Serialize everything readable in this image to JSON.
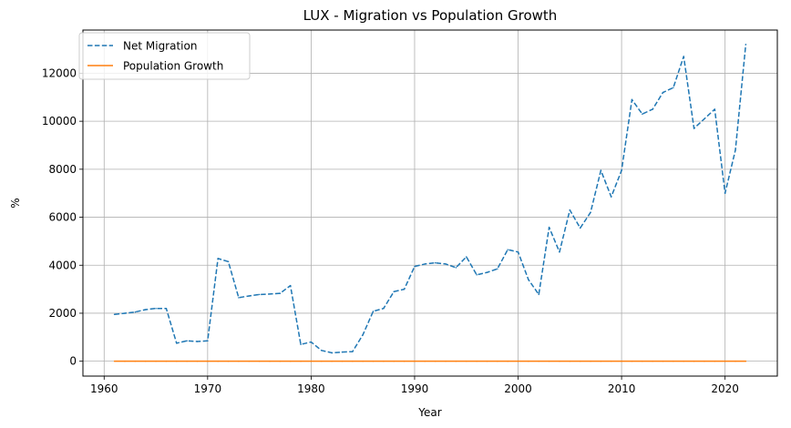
{
  "chart_data": {
    "type": "line",
    "title": "LUX - Migration vs Population Growth",
    "xlabel": "Year",
    "ylabel": "%",
    "xlim": [
      1957.95,
      2025.05
    ],
    "ylim": [
      -620,
      13800
    ],
    "xticks": [
      1960,
      1970,
      1980,
      1990,
      2000,
      2010,
      2020
    ],
    "yticks": [
      0,
      2000,
      4000,
      6000,
      8000,
      10000,
      12000
    ],
    "grid": true,
    "legend_position": "top-left",
    "x": [
      1961,
      1962,
      1963,
      1964,
      1965,
      1966,
      1967,
      1968,
      1969,
      1970,
      1971,
      1972,
      1973,
      1974,
      1975,
      1976,
      1977,
      1978,
      1979,
      1980,
      1981,
      1982,
      1983,
      1984,
      1985,
      1986,
      1987,
      1988,
      1989,
      1990,
      1991,
      1992,
      1993,
      1994,
      1995,
      1996,
      1997,
      1998,
      1999,
      2000,
      2001,
      2002,
      2003,
      2004,
      2005,
      2006,
      2007,
      2008,
      2009,
      2010,
      2011,
      2012,
      2013,
      2014,
      2015,
      2016,
      2017,
      2018,
      2019,
      2020,
      2021,
      2022
    ],
    "series": [
      {
        "name": "Net Migration",
        "color": "#1f77b4",
        "style": "dashed",
        "values": [
          1950,
          2000,
          2050,
          2150,
          2200,
          2200,
          750,
          850,
          820,
          850,
          4280,
          4150,
          2650,
          2720,
          2780,
          2800,
          2830,
          3150,
          700,
          800,
          450,
          350,
          380,
          400,
          1100,
          2080,
          2200,
          2900,
          3000,
          3950,
          4050,
          4100,
          4050,
          3900,
          4350,
          3600,
          3700,
          3850,
          4650,
          4550,
          3400,
          2780,
          5580,
          4550,
          6300,
          5550,
          6200,
          7950,
          6850,
          7950,
          10900,
          10300,
          10500,
          11200,
          11400,
          12700,
          9700,
          10100,
          10500,
          7000,
          8800,
          13200
        ]
      },
      {
        "name": "Population Growth",
        "color": "#ff7f0e",
        "style": "solid",
        "values": [
          0.5,
          0.6,
          0.7,
          0.8,
          0.8,
          0.9,
          0.7,
          0.5,
          0.4,
          0.6,
          1.2,
          1.3,
          1.4,
          1.3,
          1.2,
          0.8,
          0.7,
          0.6,
          0.4,
          0.4,
          0.3,
          0.2,
          0.1,
          0.2,
          0.3,
          0.5,
          0.8,
          1.0,
          1.1,
          1.3,
          1.4,
          1.3,
          1.4,
          1.3,
          1.5,
          1.3,
          1.3,
          1.4,
          1.4,
          1.3,
          1.2,
          1.1,
          1.3,
          1.3,
          1.6,
          1.7,
          1.6,
          1.8,
          1.8,
          1.9,
          2.2,
          2.3,
          2.4,
          2.4,
          2.5,
          2.4,
          1.9,
          1.9,
          2.0,
          1.3,
          1.7,
          1.8
        ]
      }
    ]
  }
}
